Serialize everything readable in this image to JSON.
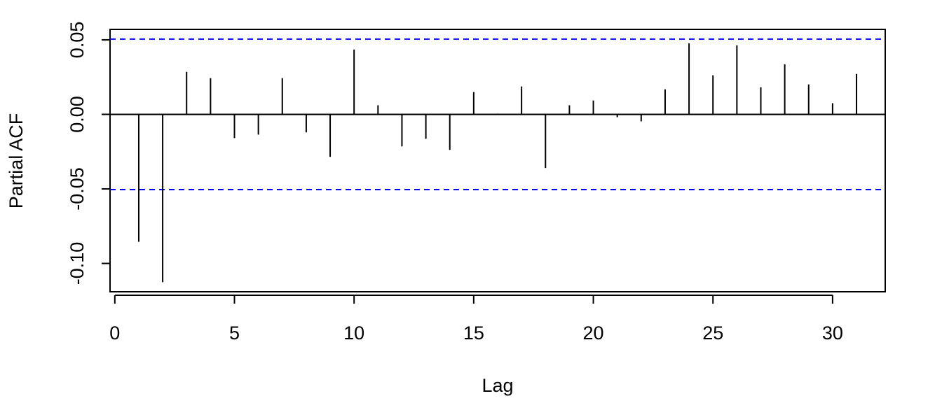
{
  "chart_data": {
    "type": "pacf",
    "xlabel": "Lag",
    "ylabel": "Partial ACF",
    "x": [
      1,
      2,
      3,
      4,
      5,
      6,
      7,
      8,
      9,
      10,
      11,
      12,
      13,
      14,
      15,
      16,
      17,
      18,
      19,
      20,
      21,
      22,
      23,
      24,
      25,
      26,
      27,
      28,
      29,
      30,
      31
    ],
    "values": [
      -0.0855,
      -0.1126,
      0.0285,
      0.0243,
      -0.0159,
      -0.0136,
      0.0243,
      -0.0121,
      -0.0285,
      0.0435,
      0.0061,
      -0.0215,
      -0.0164,
      -0.0238,
      0.015,
      0.0005,
      0.0187,
      -0.036,
      0.0061,
      0.0093,
      -0.0019,
      -0.0047,
      0.0168,
      0.0477,
      0.0262,
      0.0463,
      0.0182,
      0.0336,
      0.0201,
      0.0075,
      0.0271
    ],
    "color": "#000000",
    "ci_lines": [
      0.0505,
      -0.0505
    ],
    "ci_color": "#0000ff",
    "xlim": [
      -0.2,
      32.2
    ],
    "ylim": [
      -0.119,
      0.057
    ],
    "xticks": [
      0,
      5,
      10,
      15,
      20,
      25,
      30
    ],
    "yticks": [
      {
        "value": -0.1,
        "label": "-0.10"
      },
      -0.05,
      {
        "value": 0,
        "label": "0.00"
      },
      0.05
    ]
  }
}
